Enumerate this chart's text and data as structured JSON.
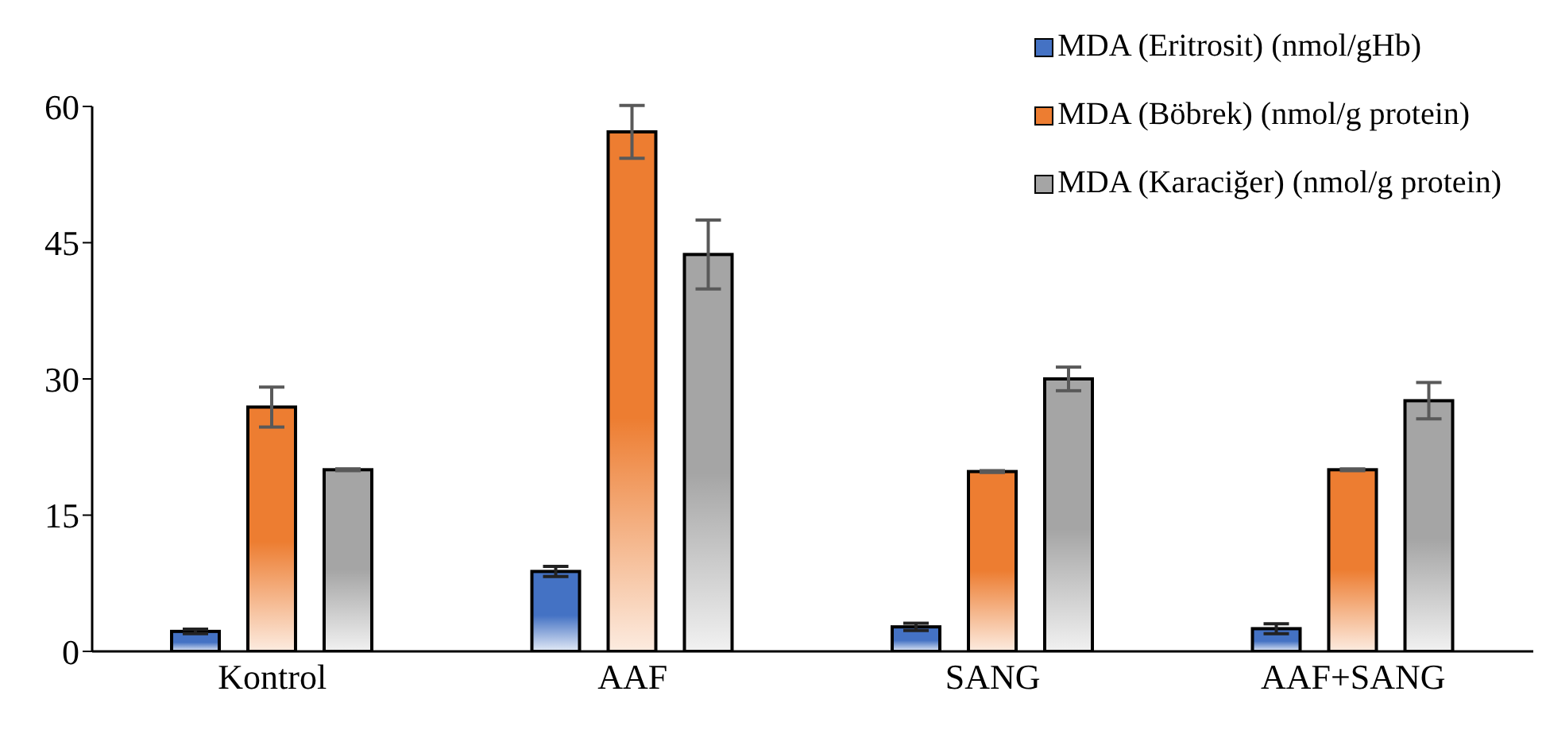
{
  "chart_data": {
    "type": "bar",
    "categories": [
      "Kontrol",
      "AAF",
      "SANG",
      "AAF+SANG"
    ],
    "series": [
      {
        "name": "MDA (Eritrosit) (nmol/gHb)",
        "color": "#4472c4",
        "values": [
          2.2,
          8.8,
          2.7,
          2.5
        ],
        "errors": [
          0.25,
          0.55,
          0.4,
          0.55
        ]
      },
      {
        "name": "MDA (Böbrek) (nmol/g protein)",
        "color": "#ed7d31",
        "values": [
          26.9,
          57.2,
          19.8,
          20.0
        ],
        "errors": [
          2.2,
          2.9,
          0.1,
          0.1
        ]
      },
      {
        "name": "MDA (Karaciğer) (nmol/g protein)",
        "color": "#a5a5a5",
        "values": [
          20.0,
          43.7,
          30.0,
          27.6
        ],
        "errors": [
          0.1,
          3.8,
          1.3,
          2.0
        ]
      }
    ],
    "ylim": [
      0,
      60
    ],
    "yticks": [
      0,
      15,
      30,
      45,
      60
    ],
    "grid": false,
    "legend": "top right"
  }
}
